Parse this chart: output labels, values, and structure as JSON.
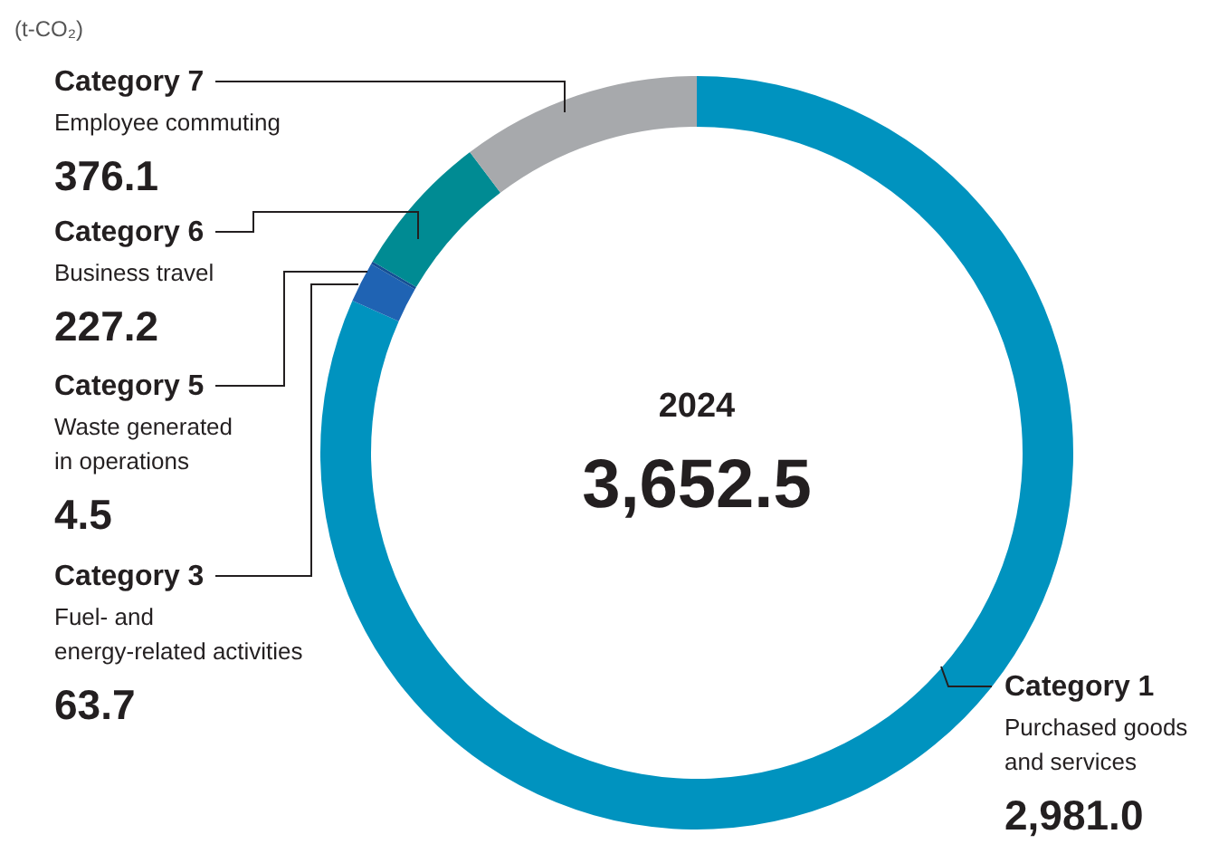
{
  "chart_data": {
    "type": "donut",
    "categories": [
      "Category 1\nPurchased goods\nand services",
      "Category 3\nFuel- and\nenergy-related activities",
      "Category 5\nWaste generated\nin operations",
      "Category 6\nBusiness travel",
      "Category 7\nEmployee commuting"
    ],
    "values": [
      2981.0,
      63.7,
      4.5,
      227.2,
      376.1
    ],
    "value_labels": [
      "2,981.0",
      "63.7",
      "4.5",
      "227.2",
      "376.1"
    ],
    "colors": [
      "#0093bf",
      "#1f63b3",
      "#154f94",
      "#008b93",
      "#a7a9ac"
    ],
    "annotations": [
      "(t-CO₂)",
      "2024",
      "3,652.5"
    ]
  }
}
